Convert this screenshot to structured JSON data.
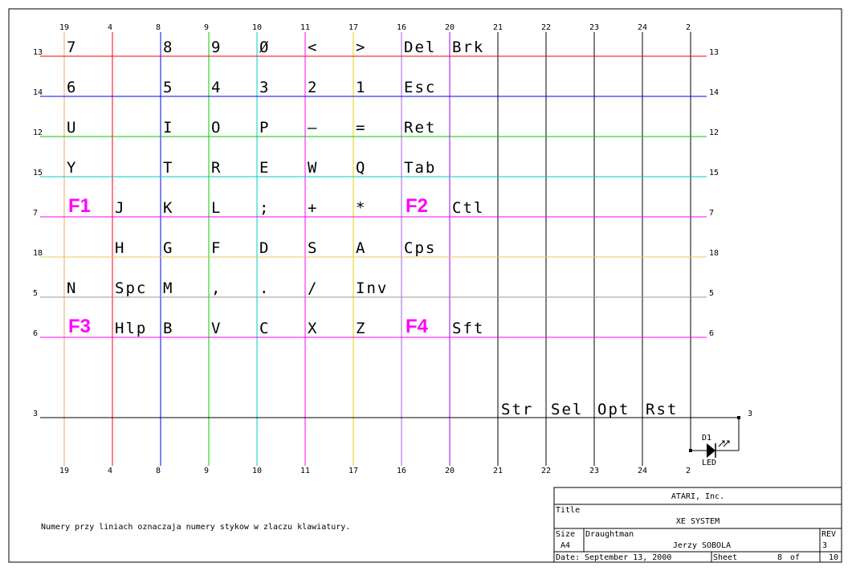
{
  "colors": {
    "column_lines": [
      "#e8a860",
      "#ff0000",
      "#0000ff",
      "#00cc00",
      "#00cccc",
      "#ff00ff",
      "#e0d000",
      "#a060e0",
      "#a000e0",
      "#000000",
      "#000000",
      "#000000",
      "#000000",
      "#000000"
    ],
    "row_lines": [
      "#ff0000",
      "#0000ff",
      "#00cc00",
      "#00cccc",
      "#ff00ff",
      "#e8c860",
      "#999999",
      "#ff00ff",
      "#000000"
    ],
    "fkey": "#ff00ff"
  },
  "columns": [
    "19",
    "4",
    "8",
    "9",
    "10",
    "11",
    "17",
    "16",
    "20",
    "21",
    "22",
    "23",
    "24",
    "2"
  ],
  "rows": [
    "13",
    "14",
    "12",
    "15",
    "7",
    "18",
    "5",
    "6",
    "3"
  ],
  "keys": [
    [
      "7",
      "",
      "8",
      "9",
      "Ø",
      "<",
      ">",
      "Del",
      "Brk"
    ],
    [
      "6",
      "",
      "5",
      "4",
      "3",
      "2",
      "1",
      "Esc",
      ""
    ],
    [
      "U",
      "",
      "I",
      "O",
      "P",
      "–",
      "=",
      "Ret",
      ""
    ],
    [
      "Y",
      "",
      "T",
      "R",
      "E",
      "W",
      "Q",
      "Tab",
      ""
    ],
    [
      "",
      "J",
      "K",
      "L",
      ";",
      "+",
      "*",
      "",
      "Ctl"
    ],
    [
      "",
      "H",
      "G",
      "F",
      "D",
      "S",
      "A",
      "Cps",
      ""
    ],
    [
      "N",
      "Spc",
      "M",
      ",",
      ".",
      "/",
      "Inv",
      "",
      ""
    ],
    [
      "",
      "Hlp",
      "B",
      "V",
      "C",
      "X",
      "Z",
      "",
      "Sft"
    ]
  ],
  "function_keys": [
    {
      "label": "F1",
      "row": 4,
      "col": 0
    },
    {
      "label": "F2",
      "row": 4,
      "col": 7
    },
    {
      "label": "F3",
      "row": 7,
      "col": 0
    },
    {
      "label": "F4",
      "row": 7,
      "col": 7
    }
  ],
  "console_keys": [
    "Str",
    "Sel",
    "Opt",
    "Rst"
  ],
  "led": {
    "ref": "D1",
    "name": "LED"
  },
  "note": "Numery przy liniach oznaczaja numery stykow w zlaczu klawiatury.",
  "title_block": {
    "company": "ATARI, Inc.",
    "title_label": "Title",
    "title": "XE SYSTEM",
    "size_label": "Size",
    "size": "A4",
    "draughtman_label": "Draughtman",
    "draughtman": "Jerzy SOBOLA",
    "rev_label": "REV",
    "rev": "3",
    "date_label": "Date:",
    "date": "September 13, 2000",
    "sheet_label": "Sheet",
    "sheet": "8",
    "of_label": "of",
    "of": "10"
  }
}
